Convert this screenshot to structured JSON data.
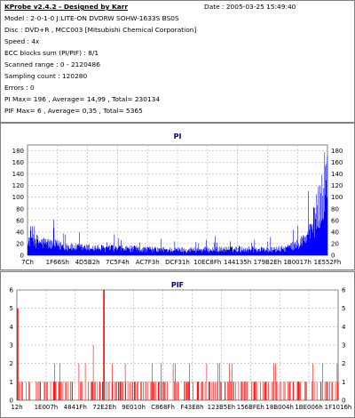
{
  "header": {
    "title": "KProbe v2.4.2 - Designed by Karr",
    "date": "Date : 2005-03-25 15:49:40"
  },
  "info": {
    "lines": [
      "Model : 2-0-1-0 J:LITE-ON DVDRW SOHW-1633S BS0S",
      "Disc : DVD+R , MCC003 [Mitsubishi Chemical Corporation]",
      "Speed : 4x",
      "ECC blocks sum (PI/PIF) : 8/1",
      "Scanned range : 0 - 2120486",
      "Sampling count : 120280",
      "Errors : 0",
      "PI Max= 196 , Average= 14,99 , Total= 230134",
      "PIF Max= 6 , Average= 0,35 , Total= 5365"
    ]
  },
  "chart_data": [
    {
      "type": "bar",
      "title": "PI",
      "series_color": "#0000ff",
      "ylim": [
        0,
        190
      ],
      "yticks": [
        0,
        20,
        40,
        60,
        80,
        100,
        120,
        140,
        160,
        180
      ],
      "xtick_labels": [
        "7Ch",
        "1F66Sh",
        "4D5B2h",
        "7C5F4h",
        "AC7F3h",
        "DCF31h",
        "10EC8Fh",
        "144135h",
        "179B2Eh",
        "1B0017h",
        "1E552Fh"
      ],
      "grid": true,
      "max": 196,
      "average": 14.99,
      "profile": [
        [
          0,
          18
        ],
        [
          0.01,
          42
        ],
        [
          0.03,
          28
        ],
        [
          0.08,
          22
        ],
        [
          0.15,
          16
        ],
        [
          0.25,
          14
        ],
        [
          0.35,
          13
        ],
        [
          0.45,
          11
        ],
        [
          0.55,
          11
        ],
        [
          0.65,
          12
        ],
        [
          0.75,
          12
        ],
        [
          0.82,
          11
        ],
        [
          0.87,
          15
        ],
        [
          0.9,
          22
        ],
        [
          0.93,
          36
        ],
        [
          0.95,
          60
        ],
        [
          0.97,
          95
        ],
        [
          0.985,
          125
        ],
        [
          1.0,
          135
        ]
      ]
    },
    {
      "type": "bar",
      "title": "PIF",
      "series_color": "#ff0000",
      "ylim": [
        0,
        6
      ],
      "yticks": [
        0,
        1,
        2,
        3,
        4,
        5,
        6
      ],
      "xtick_labels": [
        "12h",
        "1E007h",
        "4841Fh",
        "72E2Eh",
        "9E010h",
        "C868Fh",
        "F43E8h",
        "123B5Eh",
        "156BFEh",
        "18B004h",
        "1BE006h",
        "1F1016h"
      ],
      "grid": true,
      "max": 6,
      "average": 0.35
    }
  ]
}
